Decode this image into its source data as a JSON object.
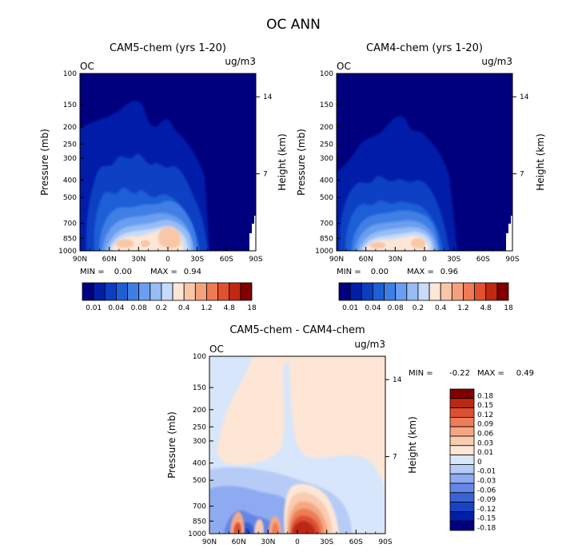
{
  "figure_title": "OC ANN",
  "chart_data": [
    {
      "type": "contour",
      "title": "CAM5-chem (yrs 1-20)",
      "variable": "OC",
      "units": "ug/m3",
      "xlabel": "",
      "ylabel": "Pressure (mb)",
      "ylabel_right": "Height (km)",
      "x_ticks": [
        "90N",
        "60N",
        "30N",
        "0",
        "30S",
        "60S",
        "90S"
      ],
      "y_ticks": [
        "100",
        "150",
        "200",
        "250",
        "300",
        "400",
        "500",
        "700",
        "850",
        "1000"
      ],
      "y_ticks_right": [
        "14",
        "7"
      ],
      "min_label": "MIN =",
      "min_value": "0.00",
      "max_label": "MAX =",
      "max_value": "0.94",
      "colorbar_labels": [
        "0.01",
        "0.04",
        "0.08",
        "0.2",
        "0.4",
        "1.2",
        "4.8",
        "18"
      ]
    },
    {
      "type": "contour",
      "title": "CAM4-chem (yrs 1-20)",
      "variable": "OC",
      "units": "ug/m3",
      "xlabel": "",
      "ylabel": "Pressure (mb)",
      "ylabel_right": "Height (km)",
      "x_ticks": [
        "90N",
        "60N",
        "30N",
        "0",
        "30S",
        "60S",
        "90S"
      ],
      "y_ticks": [
        "100",
        "150",
        "200",
        "250",
        "300",
        "400",
        "500",
        "700",
        "850",
        "1000"
      ],
      "y_ticks_right": [
        "14",
        "7"
      ],
      "min_label": "MIN =",
      "min_value": "0.00",
      "max_label": "MAX =",
      "max_value": "0.96",
      "colorbar_labels": [
        "0.01",
        "0.04",
        "0.08",
        "0.2",
        "0.4",
        "1.2",
        "4.8",
        "18"
      ]
    },
    {
      "type": "contour",
      "title": "CAM5-chem - CAM4-chem",
      "variable": "OC",
      "units": "ug/m3",
      "xlabel": "",
      "ylabel": "Pressure (mb)",
      "ylabel_right": "Height (km)",
      "x_ticks": [
        "90N",
        "60N",
        "30N",
        "0",
        "30S",
        "60S",
        "90S"
      ],
      "y_ticks": [
        "100",
        "150",
        "200",
        "250",
        "300",
        "400",
        "500",
        "700",
        "850",
        "1000"
      ],
      "y_ticks_right": [
        "14",
        "7"
      ],
      "min_label": "MIN =",
      "min_value": "-0.22",
      "max_label": "MAX =",
      "max_value": "0.49",
      "colorbar_labels": [
        "0.18",
        "0.15",
        "0.12",
        "0.09",
        "0.06",
        "0.03",
        "0.01",
        "0",
        "-0.01",
        "-0.03",
        "-0.06",
        "-0.09",
        "-0.12",
        "-0.15",
        "-0.18"
      ]
    }
  ],
  "colors": {
    "seq": [
      "#00007f",
      "#001fa8",
      "#0a3fc2",
      "#1f5fd6",
      "#3f7fe4",
      "#6a9ef0",
      "#98bcf5",
      "#c6dcfa",
      "#fde6d6",
      "#f8c7a8",
      "#f4a27e",
      "#ee7b55",
      "#e2502e",
      "#c12812",
      "#7f0000"
    ],
    "div": [
      "#00007f",
      "#001fa8",
      "#1843c4",
      "#3a63d6",
      "#6486e6",
      "#8eaaf0",
      "#b6cbf6",
      "#d8e6fb",
      "#fde6d6",
      "#f9cbb1",
      "#f4a783",
      "#ec7d58",
      "#dc5032",
      "#bb2812",
      "#7f0000"
    ]
  }
}
